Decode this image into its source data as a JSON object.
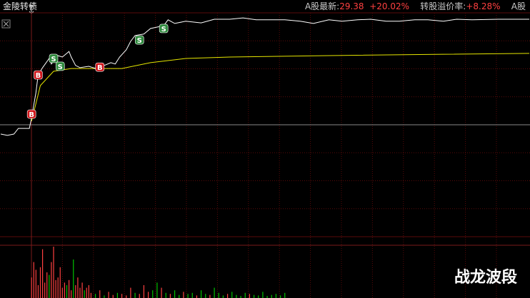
{
  "header": {
    "name": "金陵转债",
    "stock_label": "A股最新:",
    "stock_price": "29.38",
    "stock_change": "+20.02%",
    "premium_label": "转股溢价率:",
    "premium": "+8.28%",
    "tab": "A股"
  },
  "watermark": "战龙波段",
  "chart_data": {
    "type": "line",
    "xlim": [
      0,
      240
    ],
    "ylim": [
      -40,
      40
    ],
    "series": [
      {
        "name": "price",
        "color": "#ffffff",
        "x": [
          0,
          3,
          6,
          8,
          13,
          14,
          16,
          17,
          19,
          22,
          23,
          26,
          28,
          31,
          32,
          34,
          36,
          40,
          44,
          47,
          50,
          52,
          54,
          57,
          59,
          61,
          65,
          68,
          71,
          74,
          76,
          79,
          84,
          91,
          97,
          104,
          110,
          116,
          123,
          129,
          136,
          142,
          149,
          155,
          162,
          168,
          175,
          181,
          188,
          194,
          201,
          207,
          214,
          226,
          240
        ],
        "values": [
          -3.3,
          -3.8,
          -3.3,
          -1.3,
          -1.3,
          2.5,
          11.5,
          17.8,
          20.4,
          23.7,
          21.7,
          24.7,
          24.2,
          26.2,
          24.2,
          21.2,
          20.4,
          20.9,
          19.9,
          21.2,
          22.2,
          21.7,
          24.2,
          26.8,
          29.8,
          31.9,
          32.4,
          34.4,
          34.9,
          35.4,
          37.5,
          36.2,
          37.0,
          36.4,
          37.7,
          37.7,
          38.2,
          37.5,
          37.5,
          37.5,
          37.0,
          36.2,
          37.5,
          37.0,
          37.5,
          37.7,
          37.0,
          37.0,
          37.5,
          37.5,
          37.0,
          37.7,
          37.5,
          37.7,
          37.7
        ]
      },
      {
        "name": "average",
        "color": "#e6e600",
        "x": [
          14,
          18,
          24,
          32,
          55,
          68,
          84,
          104,
          146,
          201,
          240
        ],
        "values": [
          1.3,
          14.0,
          19.1,
          20.1,
          20.1,
          22.2,
          23.7,
          24.2,
          24.7,
          25.2,
          25.5
        ]
      }
    ],
    "signals": [
      {
        "label": "B",
        "x": 14,
        "y": 3.8,
        "color": "#d0161b"
      },
      {
        "label": "B",
        "x": 17,
        "y": 17.8,
        "color": "#d0161b"
      },
      {
        "label": "S",
        "x": 24,
        "y": 23.7,
        "color": "#2e8b3d"
      },
      {
        "label": "S",
        "x": 27,
        "y": 20.9,
        "color": "#2e8b3d"
      },
      {
        "label": "B",
        "x": 45,
        "y": 20.6,
        "color": "#d0161b"
      },
      {
        "label": "S",
        "x": 63,
        "y": 30.3,
        "color": "#2e8b3d"
      },
      {
        "label": "S",
        "x": 74,
        "y": 34.4,
        "color": "#2e8b3d"
      }
    ],
    "volume": {
      "ylim": [
        0,
        100
      ],
      "x": [
        14,
        15,
        16,
        17,
        18,
        19,
        20,
        21,
        22,
        23,
        24,
        25,
        26,
        27,
        28,
        29,
        30,
        31,
        32,
        33,
        34,
        35,
        36,
        37,
        38,
        39,
        40,
        41,
        43,
        45,
        47,
        49,
        51,
        53,
        55,
        57,
        59,
        61,
        63,
        65,
        67,
        69,
        71,
        73,
        75,
        77,
        79,
        81,
        83,
        85,
        87,
        89,
        91,
        93,
        95,
        97,
        99,
        101,
        103,
        105,
        107,
        109,
        111,
        113,
        115,
        117,
        119,
        121,
        123,
        125,
        127,
        129
      ],
      "values": [
        40,
        70,
        55,
        25,
        60,
        95,
        30,
        50,
        45,
        70,
        100,
        35,
        40,
        60,
        20,
        30,
        25,
        35,
        15,
        75,
        25,
        40,
        20,
        30,
        15,
        20,
        25,
        10,
        8,
        15,
        5,
        12,
        6,
        10,
        8,
        5,
        20,
        10,
        8,
        25,
        12,
        15,
        30,
        20,
        10,
        8,
        15,
        6,
        12,
        8,
        10,
        5,
        15,
        8,
        6,
        20,
        10,
        5,
        8,
        12,
        6,
        4,
        10,
        8,
        6,
        5,
        12,
        4,
        6,
        8,
        5,
        10
      ],
      "colors": [
        "#ff4040",
        "#ff4040",
        "#ff4040",
        "#ff4040",
        "#ff4040",
        "#ff4040",
        "#ff4040",
        "#ff4040",
        "#00c000",
        "#ff4040",
        "#ff4040",
        "#ff4040",
        "#ff4040",
        "#ff4040",
        "#ff4040",
        "#ff4040",
        "#00c000",
        "#ff4040",
        "#ff4040",
        "#00c000",
        "#ff4040",
        "#ff4040",
        "#ff4040",
        "#ff4040",
        "#00c000",
        "#ff4040",
        "#ff4040",
        "#ff4040",
        "#00c000",
        "#ff4040",
        "#00c000",
        "#ff4040",
        "#ff4040",
        "#00c000",
        "#ff4040",
        "#ff4040",
        "#ff4040",
        "#00c000",
        "#ff4040",
        "#ff4040",
        "#ff4040",
        "#00c000",
        "#00c000",
        "#ff4040",
        "#00c000",
        "#ff4040",
        "#00c000",
        "#00c000",
        "#ff4040",
        "#00c000",
        "#00c000",
        "#ff4040",
        "#00c000",
        "#00c000",
        "#ff4040",
        "#00c000",
        "#00c000",
        "#00c000",
        "#ff4040",
        "#00c000",
        "#00c000",
        "#00c000",
        "#00c000",
        "#ff4040",
        "#00c000",
        "#00c000",
        "#00c000",
        "#00c000",
        "#00c000",
        "#00c000",
        "#00c000",
        "#00c000"
      ]
    }
  }
}
